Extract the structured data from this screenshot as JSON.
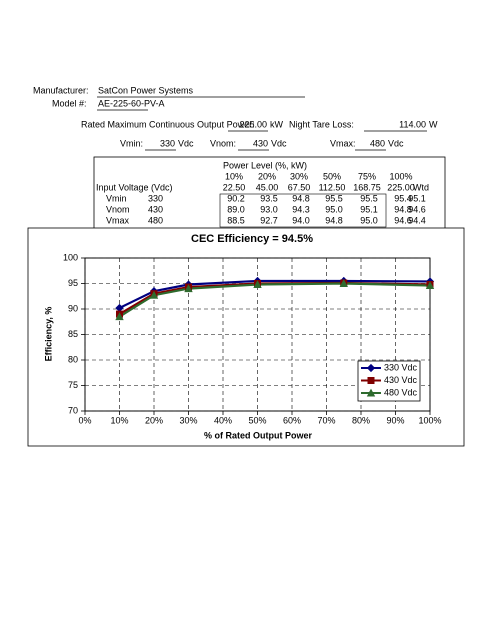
{
  "header": {
    "manufacturer_label": "Manufacturer:",
    "manufacturer": "SatCon Power Systems",
    "model_label": "Model #:",
    "model": "AE-225-60-PV-A",
    "rated_power_label": "Rated Maximum Continuous Output Power:",
    "rated_power": "225.00",
    "rated_power_unit": "kW",
    "tare_label": "Night Tare Loss:",
    "tare": "114.00",
    "tare_unit": "W",
    "voltages": [
      {
        "label": "Vmin:",
        "value": "330",
        "unit": "Vdc"
      },
      {
        "label": "Vnom:",
        "value": "430",
        "unit": "Vdc"
      },
      {
        "label": "Vmax:",
        "value": "480",
        "unit": "Vdc"
      }
    ]
  },
  "table": {
    "title": "Power Level (%, kW)",
    "percent_row": [
      "10%",
      "20%",
      "30%",
      "50%",
      "75%",
      "100%"
    ],
    "header_row": [
      "Input Voltage (Vdc)",
      "22.50",
      "45.00",
      "67.50",
      "112.50",
      "168.75",
      "225.00",
      "Wtd"
    ],
    "rows": [
      [
        "Vmin",
        "330",
        "90.2",
        "93.5",
        "94.8",
        "95.5",
        "95.5",
        "95.4",
        "95.1"
      ],
      [
        "Vnom",
        "430",
        "89.0",
        "93.0",
        "94.3",
        "95.0",
        "95.1",
        "94.8",
        "94.6"
      ],
      [
        "Vmax",
        "480",
        "88.5",
        "92.7",
        "94.0",
        "94.8",
        "95.0",
        "94.6",
        "94.4"
      ]
    ]
  },
  "chart_data": {
    "type": "line",
    "title": "CEC Efficiency = 94.5%",
    "x_label": "% of Rated Output Power",
    "y_label": "Efficiency, %",
    "x": [
      10,
      20,
      30,
      50,
      75,
      100
    ],
    "series": [
      {
        "name": "330 Vdc",
        "color": "#000080",
        "marker": "diamond",
        "values": [
          90.2,
          93.5,
          94.8,
          95.5,
          95.5,
          95.4
        ]
      },
      {
        "name": "430 Vdc",
        "color": "#800000",
        "marker": "square",
        "values": [
          89.0,
          93.0,
          94.3,
          95.0,
          95.1,
          94.8
        ]
      },
      {
        "name": "480 Vdc",
        "color": "#2e6b2e",
        "marker": "triangle",
        "values": [
          88.5,
          92.7,
          94.0,
          94.8,
          95.0,
          94.6
        ]
      }
    ],
    "xlim": [
      0,
      100
    ],
    "xticks": [
      {
        "value": 0,
        "label": "0%"
      },
      {
        "value": 10,
        "label": "10%"
      },
      {
        "value": 20,
        "label": "20%"
      },
      {
        "value": 30,
        "label": "30%"
      },
      {
        "value": 40,
        "label": "40%"
      },
      {
        "value": 50,
        "label": "50%"
      },
      {
        "value": 60,
        "label": "60%"
      },
      {
        "value": 70,
        "label": "70%"
      },
      {
        "value": 80,
        "label": "80%"
      },
      {
        "value": 90,
        "label": "90%"
      },
      {
        "value": 100,
        "label": "100%"
      }
    ],
    "ylim": [
      70,
      100
    ],
    "yticks": [
      70,
      75,
      80,
      85,
      90,
      95,
      100
    ],
    "grid": true,
    "legend": "lower right"
  }
}
